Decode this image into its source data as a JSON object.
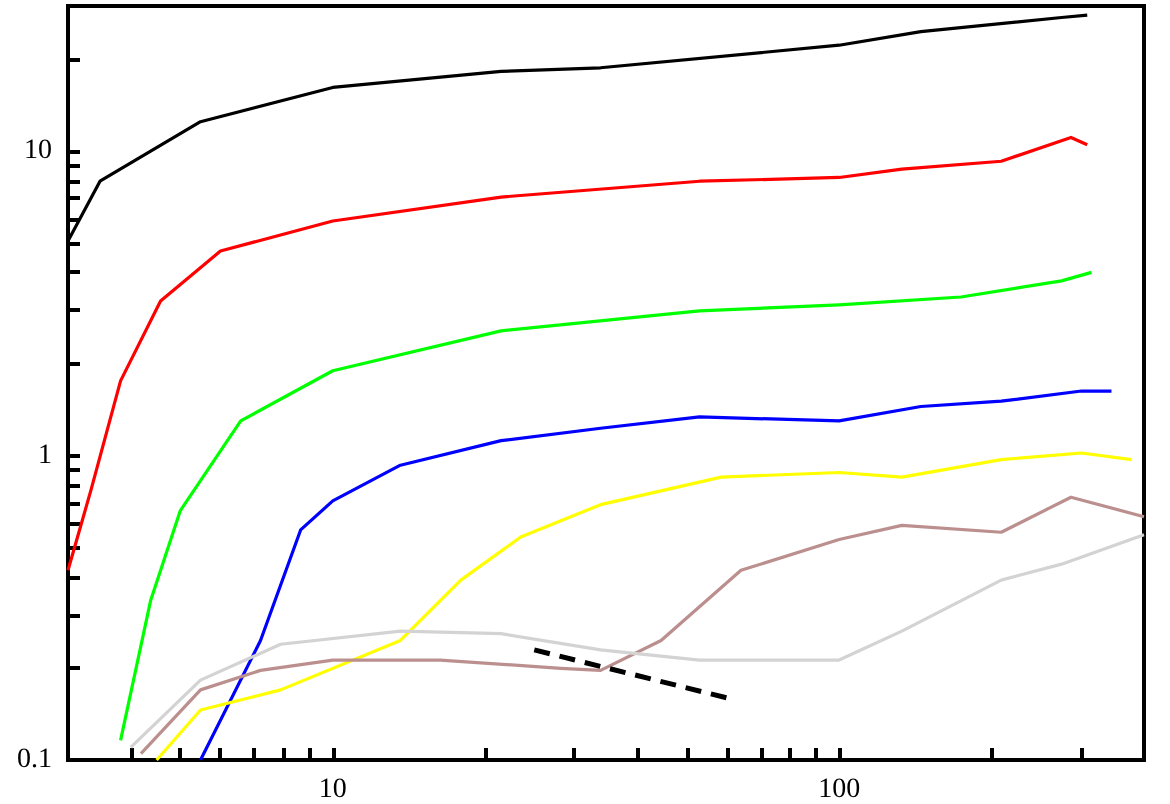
{
  "chart_data": {
    "type": "line",
    "log": "xy",
    "marker": "none",
    "xlim": [
      3,
      400
    ],
    "ylim": [
      0.1,
      30
    ],
    "xticks": [
      {
        "value": 4,
        "label": null
      },
      {
        "value": 5,
        "label": null
      },
      {
        "value": 6,
        "label": null
      },
      {
        "value": 7,
        "label": null
      },
      {
        "value": 8,
        "label": null
      },
      {
        "value": 9,
        "label": null
      },
      10,
      {
        "value": 20,
        "label": null
      },
      {
        "value": 30,
        "label": null
      },
      {
        "value": 40,
        "label": null
      },
      {
        "value": 50,
        "label": null
      },
      {
        "value": 60,
        "label": null
      },
      {
        "value": 70,
        "label": null
      },
      {
        "value": 80,
        "label": null
      },
      {
        "value": 90,
        "label": null
      },
      100,
      {
        "value": 200,
        "label": null
      },
      {
        "value": 300,
        "label": null
      }
    ],
    "yticks": [
      0.1,
      {
        "value": 0.2,
        "label": null
      },
      {
        "value": 0.3,
        "label": null
      },
      {
        "value": 0.4,
        "label": null
      },
      {
        "value": 0.5,
        "label": null
      },
      {
        "value": 0.6,
        "label": null
      },
      {
        "value": 0.7,
        "label": null
      },
      {
        "value": 0.8,
        "label": null
      },
      {
        "value": 0.9,
        "label": null
      },
      1,
      {
        "value": 2,
        "label": null
      },
      {
        "value": 3,
        "label": null
      },
      {
        "value": 4,
        "label": null
      },
      {
        "value": 5,
        "label": null
      },
      {
        "value": 6,
        "label": null
      },
      {
        "value": 7,
        "label": null
      },
      {
        "value": 8,
        "label": null
      },
      {
        "value": 9,
        "label": null
      },
      10,
      {
        "value": 20,
        "label": null
      }
    ],
    "series": [
      {
        "color": "#000000",
        "x": [
          3.0,
          3.47,
          5.48,
          10,
          21.5,
          33.8,
          100,
          145,
          275,
          309
        ],
        "values": [
          5.07,
          7.97,
          12.5,
          16.2,
          18.3,
          18.8,
          22.3,
          24.7,
          27.5,
          28
        ]
      },
      {
        "color": "#ff0000",
        "x": [
          3.0,
          3.33,
          3.81,
          4.57,
          6.0,
          10,
          21.5,
          53,
          100,
          133,
          209,
          287,
          309
        ],
        "values": [
          0.42,
          0.77,
          1.76,
          3.22,
          4.7,
          5.9,
          7.07,
          7.97,
          8.2,
          8.73,
          9.27,
          11.1,
          10.5
        ]
      },
      {
        "color": "#00ff00",
        "x": [
          3.81,
          4.37,
          5.0,
          6.58,
          10,
          21.5,
          53,
          100,
          174,
          275,
          315
        ],
        "values": [
          0.116,
          0.335,
          0.66,
          1.3,
          1.9,
          2.57,
          2.99,
          3.13,
          3.32,
          3.75,
          4.0
        ]
      },
      {
        "color": "#0000ff",
        "x": [
          5.48,
          7.2,
          8.64,
          10,
          13.6,
          21.5,
          33.8,
          53,
          100,
          145,
          209,
          301,
          345
        ],
        "values": [
          0.1,
          0.247,
          0.57,
          0.71,
          0.93,
          1.12,
          1.23,
          1.34,
          1.3,
          1.45,
          1.51,
          1.63,
          1.63
        ]
      },
      {
        "color": "#ffff00",
        "x": [
          4.49,
          5.48,
          7.89,
          13.6,
          17.9,
          23.5,
          33.8,
          58.5,
          100,
          133,
          209,
          301,
          378
        ],
        "values": [
          0.1,
          0.146,
          0.17,
          0.247,
          0.39,
          0.54,
          0.69,
          0.85,
          0.88,
          0.85,
          0.97,
          1.02,
          0.97
        ]
      },
      {
        "color": "#bc8f8f",
        "x": [
          4.18,
          5.48,
          7.2,
          10,
          16.3,
          28.2,
          33.8,
          44.5,
          64,
          100,
          133,
          209,
          287,
          400
        ],
        "values": [
          0.105,
          0.17,
          0.197,
          0.213,
          0.213,
          0.2,
          0.197,
          0.247,
          0.42,
          0.53,
          0.59,
          0.56,
          0.73,
          0.63
        ]
      },
      {
        "color": "#d3d3d3",
        "x": [
          3.99,
          5.48,
          7.89,
          13.6,
          21.5,
          33.8,
          53,
          100,
          133,
          209,
          275,
          400
        ],
        "values": [
          0.11,
          0.183,
          0.24,
          0.265,
          0.26,
          0.23,
          0.213,
          0.213,
          0.265,
          0.39,
          0.44,
          0.55
        ]
      },
      {
        "color": "#000000",
        "line_style": "dashed",
        "x": [
          25,
          60
        ],
        "values": [
          0.23,
          0.16
        ]
      }
    ]
  }
}
